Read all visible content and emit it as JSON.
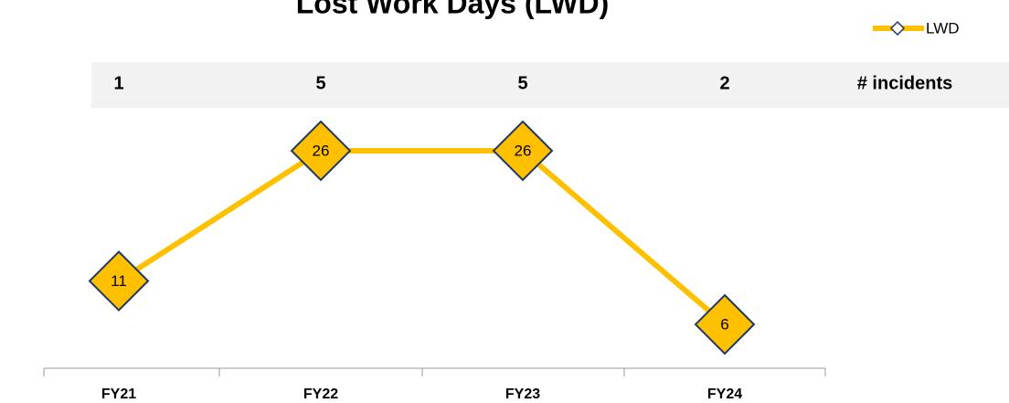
{
  "chart_data": {
    "type": "line",
    "title": "Lost Work Days (LWD)",
    "categories": [
      "FY21",
      "FY22",
      "FY23",
      "FY24"
    ],
    "series": [
      {
        "name": "LWD",
        "color": "#FFC000",
        "values": [
          11,
          26,
          26,
          6
        ]
      }
    ],
    "incidents": {
      "label": "# incidents",
      "values": [
        1,
        5,
        5,
        2
      ]
    },
    "ylim": [
      0,
      30
    ],
    "legend": "top-right"
  }
}
